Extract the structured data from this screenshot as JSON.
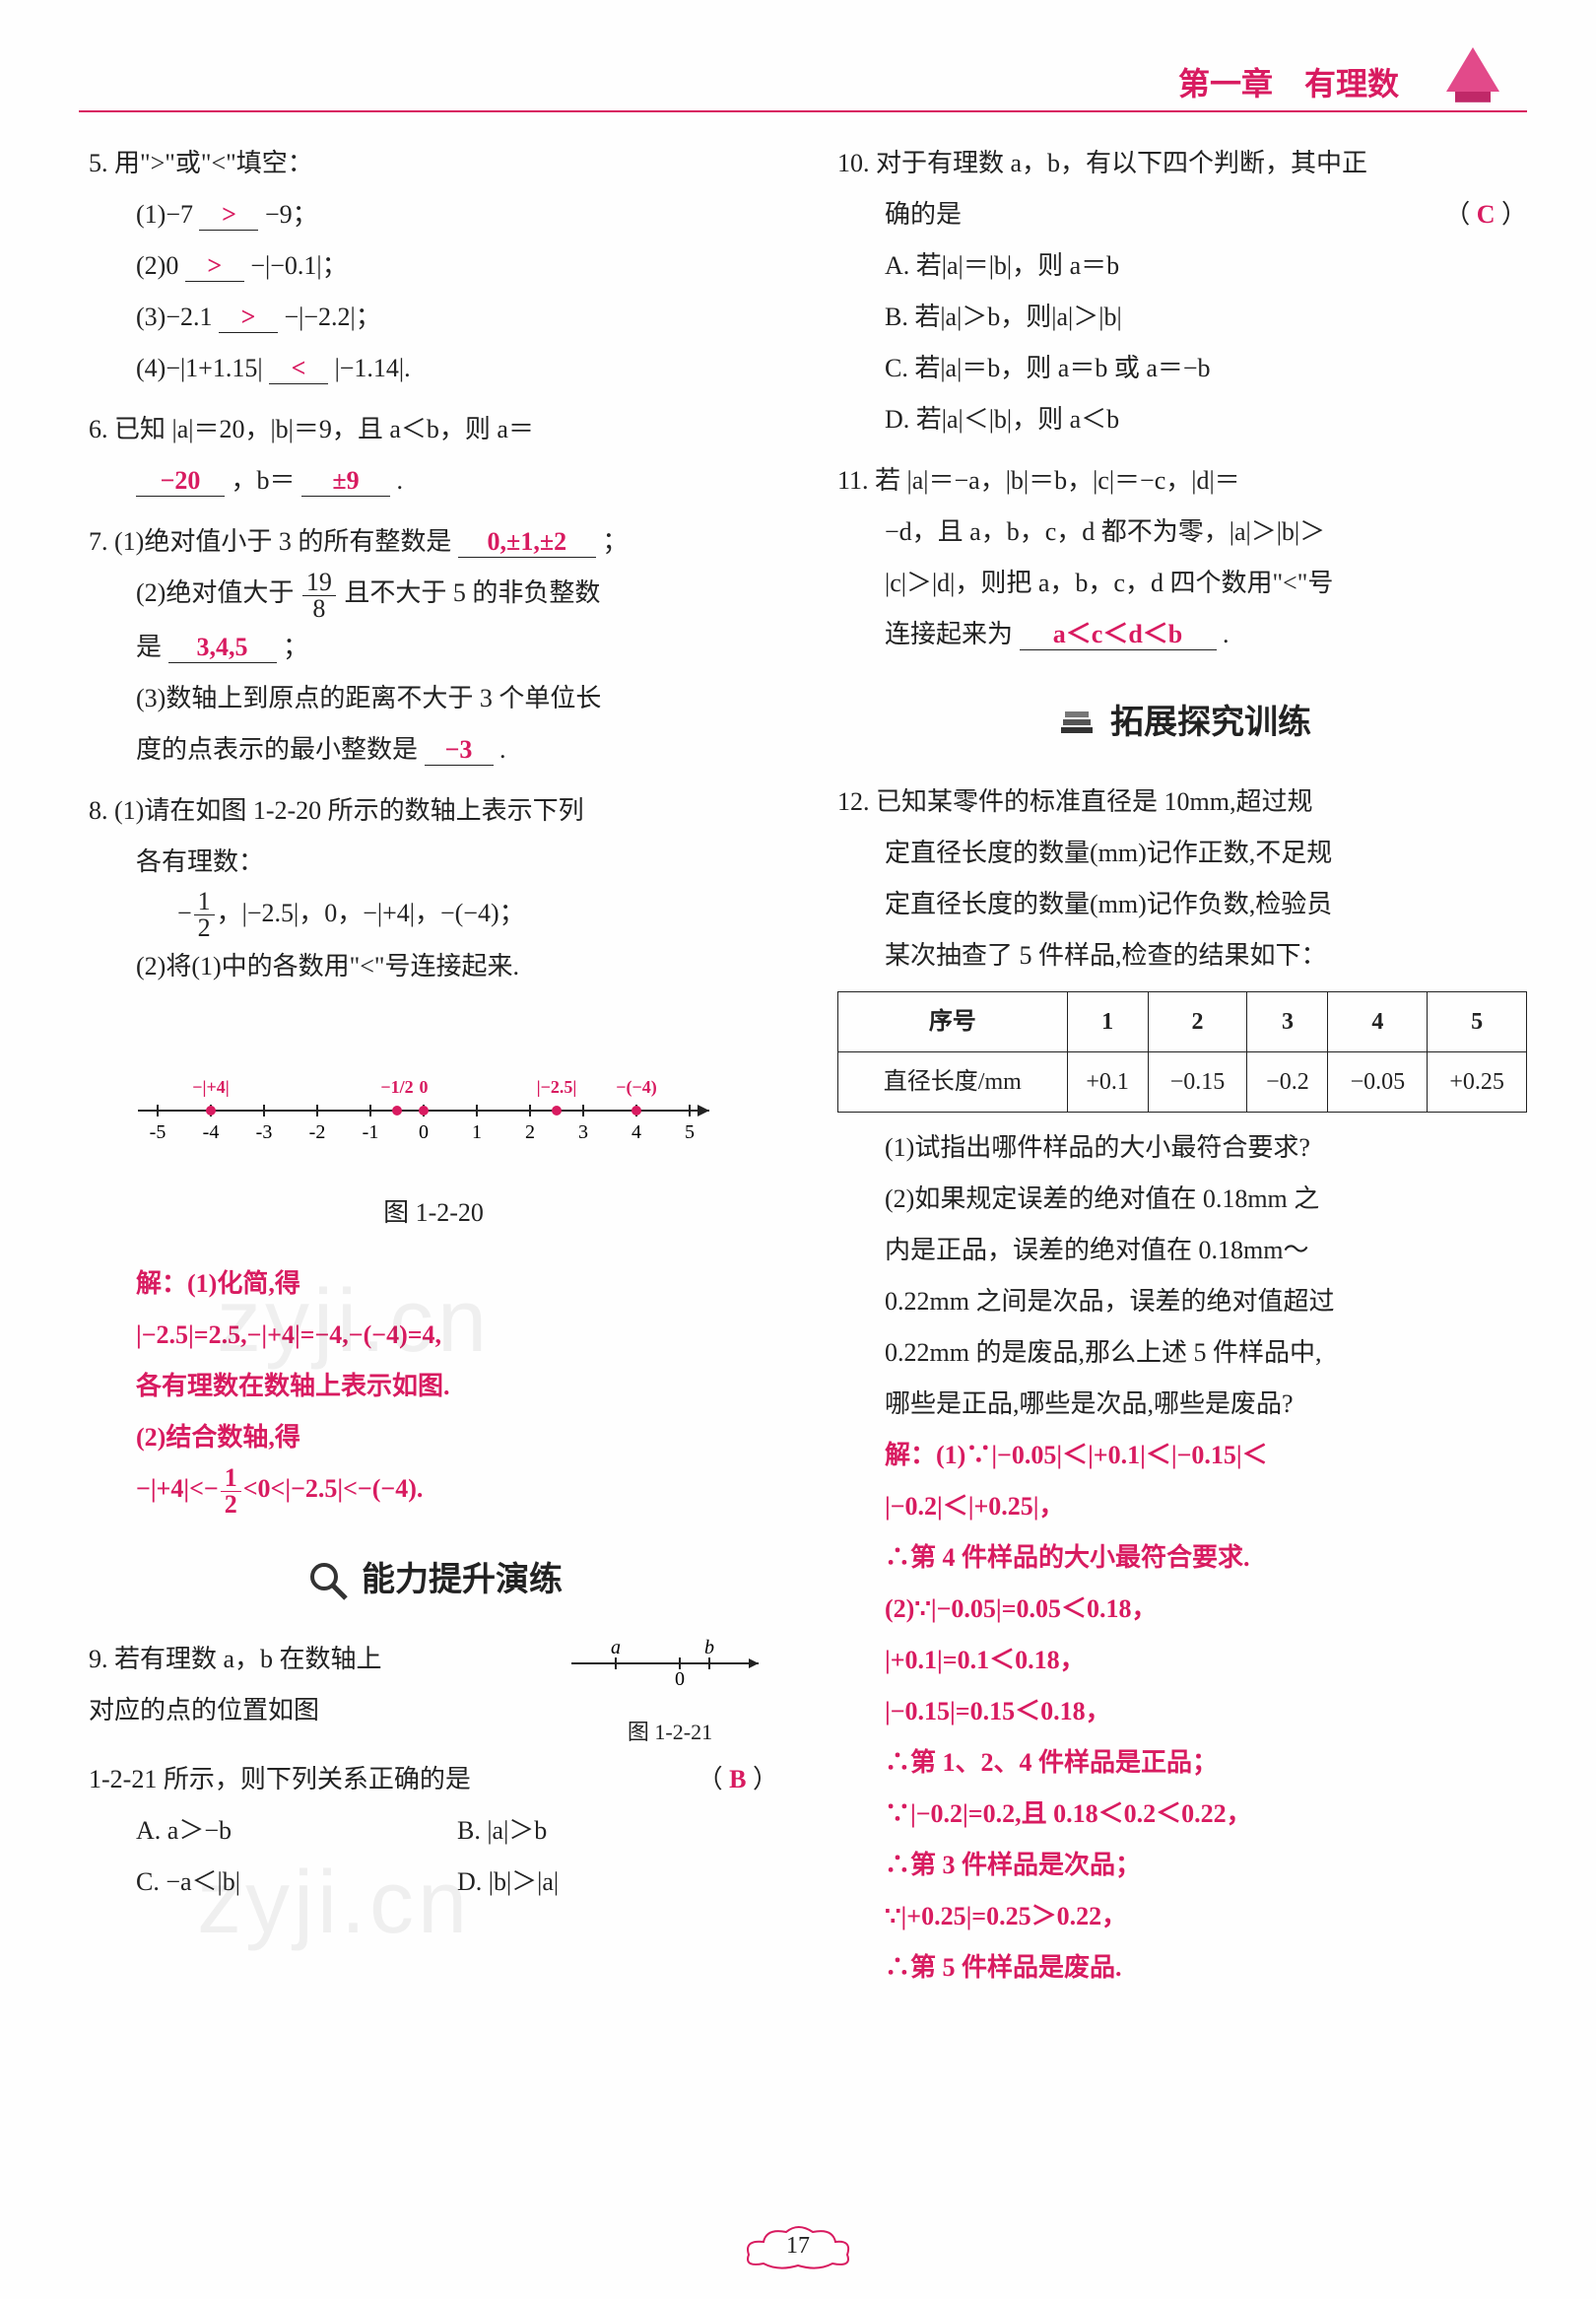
{
  "header": {
    "chapter_title": "第一章　有理数",
    "divider_color": "#d81b60"
  },
  "page_number": "17",
  "watermark_text": "zyji.cn",
  "answer_color": "#d81b60",
  "left_column": {
    "q5": {
      "stem": "5. 用\">\"或\"<\"填空：",
      "parts": [
        {
          "label": "(1)−7",
          "ans": ">",
          "after": "−9；"
        },
        {
          "label": "(2)0",
          "ans": ">",
          "after": "−|−0.1|；"
        },
        {
          "label": "(3)−2.1",
          "ans": ">",
          "after": "−|−2.2|；"
        },
        {
          "label": "(4)−|1+1.15|",
          "ans": "<",
          "after": "|−1.14|."
        }
      ]
    },
    "q6": {
      "stem": "6. 已知 |a|＝20，|b|＝9，且 a＜b，则 a＝",
      "ans_a": "−20",
      "mid": "，b＝",
      "ans_b": "±9",
      "end": "."
    },
    "q7": {
      "p1_stem": "7. (1)绝对值小于 3 的所有整数是",
      "p1_ans": "0,±1,±2",
      "p1_end": "；",
      "p2_stem_a": "(2)绝对值大于",
      "p2_frac_num": "19",
      "p2_frac_den": "8",
      "p2_stem_b": "且不大于 5 的非负整数",
      "p2_stem_c": "是",
      "p2_ans": "3,4,5",
      "p2_end": "；",
      "p3_stem_a": "(3)数轴上到原点的距离不大于 3 个单位长",
      "p3_stem_b": "度的点表示的最小整数是",
      "p3_ans": "−3",
      "p3_end": "."
    },
    "q8": {
      "p1_a": "8. (1)请在如图 1-2-20 所示的数轴上表示下列",
      "p1_b": "各有理数：",
      "expr": "− ，|−2.5|，0，−|+4|，−(−4)；",
      "frac_num": "1",
      "frac_den": "2",
      "p2": "(2)将(1)中的各数用\"<\"号连接起来.",
      "numberline": {
        "min": -5,
        "max": 5,
        "ticks": [
          -5,
          -4,
          -3,
          -2,
          -1,
          0,
          1,
          2,
          3,
          4,
          5
        ],
        "caption": "图 1-2-20",
        "points": [
          {
            "x": -4,
            "label": "−|+4|",
            "color": "#d81b60"
          },
          {
            "x": -0.5,
            "label": "−1/2",
            "color": "#d81b60"
          },
          {
            "x": 0,
            "label": "0",
            "color": "#d81b60"
          },
          {
            "x": 2.5,
            "label": "|−2.5|",
            "color": "#d81b60"
          },
          {
            "x": 4,
            "label": "−(−4)",
            "color": "#d81b60"
          }
        ]
      },
      "sol": [
        "解：(1)化简,得",
        "|−2.5|=2.5,−|+4|=−4,−(−4)=4,",
        "各有理数在数轴上表示如图.",
        "(2)结合数轴,得",
        "−|+4|<−  <0<|−2.5|<−(−4)."
      ],
      "sol_frac_num": "1",
      "sol_frac_den": "2"
    },
    "section_ability": "能力提升演练",
    "q9": {
      "stem_a": "9. 若有理数 a，b 在数轴上",
      "stem_b": "对应的点的位置如图",
      "stem_c": "1-2-21 所示，则下列关系正确的是",
      "fig_caption": "图 1-2-21",
      "paren_ans": "B",
      "opts": {
        "A": "A. a＞−b",
        "B": "B. |a|＞b",
        "C": "C. −a＜|b|",
        "D": "D. |b|＞|a|"
      },
      "mini_line": {
        "a_x": -2.2,
        "b_x": 1.2,
        "zero": 0
      }
    }
  },
  "right_column": {
    "q10": {
      "stem_a": "10. 对于有理数 a，b，有以下四个判断，其中正",
      "stem_b": "确的是",
      "paren_ans": "C",
      "opts": {
        "A": "A. 若|a|＝|b|，则 a＝b",
        "B": "B. 若|a|＞b，则|a|＞|b|",
        "C": "C. 若|a|＝b，则 a＝b 或 a＝−b",
        "D": "D. 若|a|＜|b|，则 a＜b"
      }
    },
    "q11": {
      "stem_a": "11. 若 |a|＝−a，|b|＝b，|c|＝−c，|d|＝",
      "stem_b": "−d，且 a，b，c，d 都不为零，|a|＞|b|＞",
      "stem_c": "|c|＞|d|，则把 a，b，c，d 四个数用\"<\"号",
      "stem_d": "连接起来为",
      "ans": "a＜c＜d＜b",
      "end": "."
    },
    "section_explore": "拓展探究训练",
    "q12": {
      "stem": [
        "12. 已知某零件的标准直径是 10mm,超过规",
        "定直径长度的数量(mm)记作正数,不足规",
        "定直径长度的数量(mm)记作负数,检验员",
        "某次抽查了 5 件样品,检查的结果如下："
      ],
      "table": {
        "header": [
          "序号",
          "1",
          "2",
          "3",
          "4",
          "5"
        ],
        "row_label": "直径长度/mm",
        "row": [
          "+0.1",
          "−0.15",
          "−0.2",
          "−0.05",
          "+0.25"
        ]
      },
      "p1": "(1)试指出哪件样品的大小最符合要求?",
      "p2": [
        "(2)如果规定误差的绝对值在 0.18mm 之",
        "内是正品，误差的绝对值在 0.18mm～",
        "0.22mm 之间是次品，误差的绝对值超过",
        "0.22mm 的是废品,那么上述 5 件样品中,",
        "哪些是正品,哪些是次品,哪些是废品?"
      ],
      "sol": [
        "解：(1)∵|−0.05|＜|+0.1|＜|−0.15|＜",
        "|−0.2|＜|+0.25|，",
        "∴第 4 件样品的大小最符合要求.",
        "(2)∵|−0.05|=0.05＜0.18，",
        "|+0.1|=0.1＜0.18，",
        "|−0.15|=0.15＜0.18，",
        "∴第 1、2、4 件样品是正品；",
        "∵|−0.2|=0.2,且 0.18＜0.2＜0.22，",
        "∴第 3 件样品是次品；",
        "∵|+0.25|=0.25＞0.22，",
        "∴第 5 件样品是废品."
      ]
    }
  }
}
